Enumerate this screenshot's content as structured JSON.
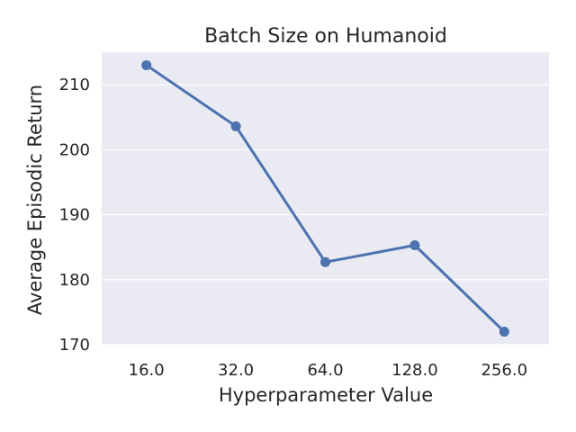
{
  "chart_data": {
    "type": "line",
    "title": "Batch Size on Humanoid",
    "xlabel": "Hyperparameter Value",
    "ylabel": "Average Episodic Return",
    "categories": [
      "16.0",
      "32.0",
      "64.0",
      "128.0",
      "256.0"
    ],
    "series": [
      {
        "values": [
          213.0,
          203.6,
          182.7,
          185.3,
          172.0
        ]
      }
    ],
    "ylim": [
      170,
      215
    ],
    "yticks": [
      170,
      180,
      190,
      200,
      210
    ],
    "grid": true,
    "colors": {
      "series": "#4c72b0",
      "plot_background": "#eaeaf2",
      "grid": "#ffffff"
    }
  }
}
